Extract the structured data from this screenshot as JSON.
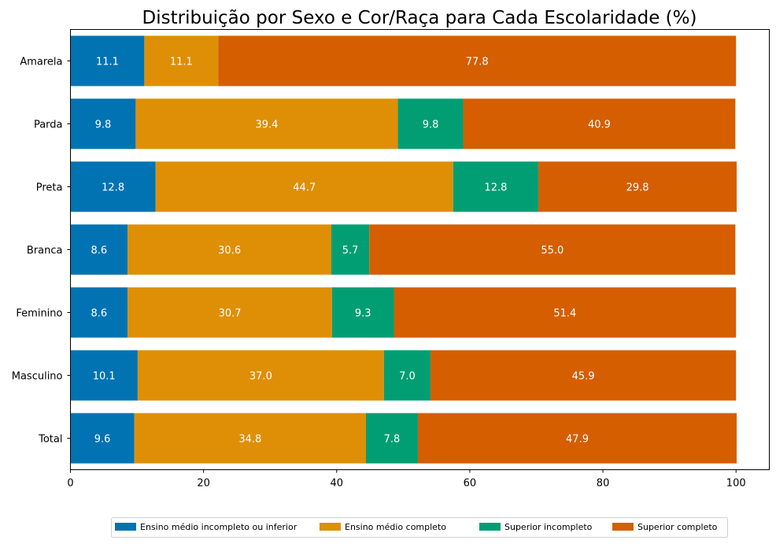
{
  "chart_data": {
    "type": "bar",
    "orientation": "horizontal",
    "stacked": true,
    "title": "Distribuição por Sexo e Cor/Raça para Cada Escolaridade (%)",
    "xlabel": "",
    "ylabel": "",
    "xlim": [
      0,
      105
    ],
    "x_ticks": [
      0,
      20,
      40,
      60,
      80,
      100
    ],
    "grid": false,
    "legend_position": "bottom-center",
    "categories": [
      "Amarela",
      "Parda",
      "Preta",
      "Branca",
      "Feminino",
      "Masculino",
      "Total"
    ],
    "series": [
      {
        "name": "Ensino médio incompleto ou inferior",
        "color": "#0173b2",
        "values": [
          11.1,
          9.8,
          12.8,
          8.6,
          8.6,
          10.1,
          9.6
        ]
      },
      {
        "name": "Ensino médio completo",
        "color": "#de8f05",
        "values": [
          11.1,
          39.4,
          44.7,
          30.6,
          30.7,
          37.0,
          34.8
        ]
      },
      {
        "name": "Superior incompleto",
        "color": "#029e73",
        "values": [
          0,
          9.8,
          12.8,
          5.7,
          9.3,
          7.0,
          7.8
        ]
      },
      {
        "name": "Superior completo",
        "color": "#d55e00",
        "values": [
          77.8,
          40.9,
          29.8,
          55.0,
          51.4,
          45.9,
          47.9
        ]
      }
    ]
  }
}
